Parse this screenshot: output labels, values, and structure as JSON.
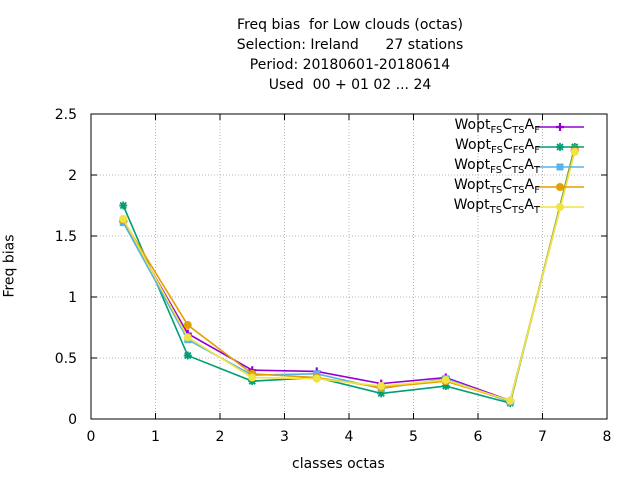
{
  "chart_data": {
    "type": "line",
    "title_lines": [
      "Freq bias  for Low clouds (octas)",
      "Selection: Ireland      27 stations",
      "Period: 20180601-20180614",
      "Used  00 + 01 02 ... 24"
    ],
    "xlabel": "classes octas",
    "ylabel": "Freq bias",
    "xlim": [
      0,
      8
    ],
    "ylim": [
      0,
      2.5
    ],
    "xticks": [
      "0",
      "1",
      "2",
      "3",
      "4",
      "5",
      "6",
      "7",
      "8"
    ],
    "yticks": [
      "0",
      "0.5",
      "1",
      "1.5",
      "2",
      "2.5"
    ],
    "grid": true,
    "legend_position": "top-right",
    "x": [
      0.5,
      1.5,
      2.5,
      3.5,
      4.5,
      5.5,
      6.5,
      7.5
    ],
    "series": [
      {
        "name_parts": [
          [
            "Wopt",
            ""
          ],
          [
            "FS",
            "sub"
          ],
          [
            "C",
            ""
          ],
          [
            "TS",
            "sub"
          ],
          [
            "A",
            ""
          ],
          [
            "F",
            "sub"
          ]
        ],
        "color": "#9400d3",
        "marker": "plus",
        "values": [
          1.62,
          0.7,
          0.4,
          0.39,
          0.29,
          0.34,
          0.15,
          2.2
        ]
      },
      {
        "name_parts": [
          [
            "Wopt",
            ""
          ],
          [
            "FS",
            "sub"
          ],
          [
            "C",
            ""
          ],
          [
            "FS",
            "sub"
          ],
          [
            "A",
            ""
          ],
          [
            "F",
            "sub"
          ]
        ],
        "color": "#009e73",
        "marker": "star",
        "values": [
          1.75,
          0.52,
          0.31,
          0.34,
          0.21,
          0.27,
          0.13,
          2.23
        ]
      },
      {
        "name_parts": [
          [
            "Wopt",
            ""
          ],
          [
            "FS",
            "sub"
          ],
          [
            "C",
            ""
          ],
          [
            "TS",
            "sub"
          ],
          [
            "A",
            ""
          ],
          [
            "T",
            "sub"
          ]
        ],
        "color": "#56b4e9",
        "marker": "square",
        "values": [
          1.61,
          0.65,
          0.36,
          0.37,
          0.25,
          0.33,
          0.14,
          2.2
        ]
      },
      {
        "name_parts": [
          [
            "Wopt",
            ""
          ],
          [
            "TS",
            "sub"
          ],
          [
            "C",
            ""
          ],
          [
            "TS",
            "sub"
          ],
          [
            "A",
            ""
          ],
          [
            "F",
            "sub"
          ]
        ],
        "color": "#e69f00",
        "marker": "circle",
        "values": [
          1.63,
          0.77,
          0.37,
          0.34,
          0.26,
          0.31,
          0.15,
          2.21
        ]
      },
      {
        "name_parts": [
          [
            "Wopt",
            ""
          ],
          [
            "TS",
            "sub"
          ],
          [
            "C",
            ""
          ],
          [
            "TS",
            "sub"
          ],
          [
            "A",
            ""
          ],
          [
            "T",
            "sub"
          ]
        ],
        "color": "#f0e442",
        "marker": "circle",
        "values": [
          1.64,
          0.67,
          0.34,
          0.33,
          0.27,
          0.32,
          0.15,
          2.19
        ]
      }
    ]
  }
}
